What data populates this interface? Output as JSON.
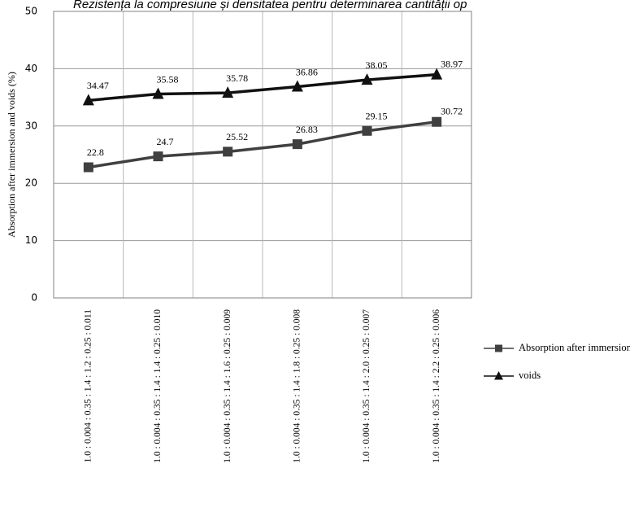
{
  "chart_data": {
    "type": "line",
    "title": "Rezistența la compresiune și densitatea pentru determinarea cantității op",
    "ylabel": "Absorption after immersion  and voids (%)",
    "xlabel": "",
    "ylim": [
      0,
      50
    ],
    "yticks": [
      0,
      10,
      20,
      30,
      40,
      50
    ],
    "grid": true,
    "legend_position": "right",
    "categories": [
      "1.0 : 0.004 : 0.35 : 1.4 : 1.2 : 0.25 : 0.011",
      "1.0 : 0.004 : 0.35 : 1.4 : 1.4 : 0.25 : 0.010",
      "1.0 : 0.004 : 0.35 : 1.4 : 1.6 : 0.25 : 0.009",
      "1.0 : 0.004 : 0.35 : 1.4 : 1.8 : 0.25 : 0.008",
      "1.0 : 0.004 : 0.35 : 1.4 : 2.0 : 0.25 : 0.007",
      "1.0 : 0.004 : 0.35 : 1.4 : 2.2 : 0.25 : 0.006"
    ],
    "series": [
      {
        "name": "Absorption after immersion",
        "marker": "square",
        "color": "#404040",
        "values": [
          22.8,
          24.7,
          25.52,
          26.83,
          29.15,
          30.72
        ],
        "labels": [
          "22.8",
          "24.7",
          "25.52",
          "26.83",
          "29.15",
          "30.72"
        ]
      },
      {
        "name": "voids",
        "marker": "triangle",
        "color": "#111111",
        "values": [
          34.47,
          35.58,
          35.78,
          36.86,
          38.05,
          38.97
        ],
        "labels": [
          "34.47",
          "35.58",
          "35.78",
          "36.86",
          "38.05",
          "38.97"
        ]
      }
    ]
  }
}
